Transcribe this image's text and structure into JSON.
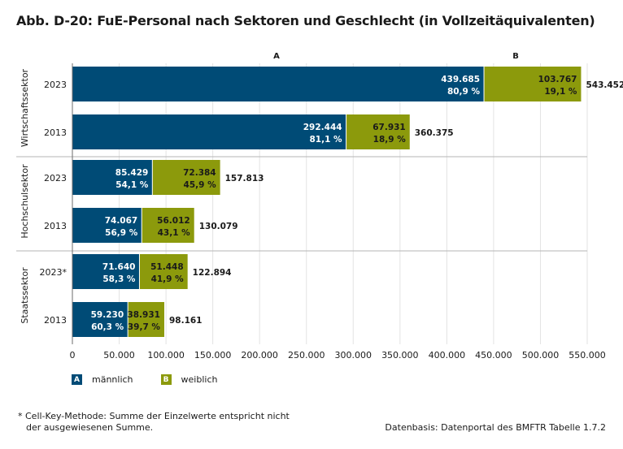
{
  "title": "Abb. D-20: FuE-Personal nach Sektoren und Geschlecht (in Vollzeitäquivalenten)",
  "chart_data": {
    "type": "bar",
    "orientation": "horizontal",
    "stacked": true,
    "column_labels": [
      "A",
      "B"
    ],
    "groups": [
      {
        "name": "Wirtschaftssektor",
        "rows": [
          {
            "label": "2023",
            "male": 439685,
            "male_pct": "80,9 %",
            "female": 103767,
            "female_pct": "19,1 %",
            "total": 543452
          },
          {
            "label": "2013",
            "male": 292444,
            "male_pct": "81,1 %",
            "female": 67931,
            "female_pct": "18,9 %",
            "total": 360375
          }
        ]
      },
      {
        "name": "Hochschulsektor",
        "rows": [
          {
            "label": "2023",
            "male": 85429,
            "male_pct": "54,1 %",
            "female": 72384,
            "female_pct": "45,9 %",
            "total": 157813
          },
          {
            "label": "2013",
            "male": 74067,
            "male_pct": "56,9 %",
            "female": 56012,
            "female_pct": "43,1 %",
            "total": 130079
          }
        ]
      },
      {
        "name": "Staatssektor",
        "rows": [
          {
            "label": "2023*",
            "male": 71640,
            "male_pct": "58,3 %",
            "female": 51448,
            "female_pct": "41,9 %",
            "total": 122894
          },
          {
            "label": "2013",
            "male": 59230,
            "male_pct": "60,3 %",
            "female": 38931,
            "female_pct": "39,7 %",
            "total": 98161
          }
        ]
      }
    ],
    "xlim": [
      0,
      550000
    ],
    "xticks": [
      0,
      50000,
      100000,
      150000,
      200000,
      250000,
      300000,
      350000,
      400000,
      450000,
      500000,
      550000
    ],
    "grid": true,
    "legend_position": "bottom-left",
    "series": [
      {
        "name": "männlich",
        "marker": "A",
        "color": "#004b76"
      },
      {
        "name": "weiblich",
        "marker": "B",
        "color": "#8c9a0c"
      }
    ]
  },
  "footnote": {
    "line1": "* Cell-Key-Methode: Summe der Einzelwerte entspricht nicht",
    "line2": "der ausgewiesenen Summe."
  },
  "source": "Datenbasis: Datenportal des BMFTR Tabelle 1.7.2"
}
